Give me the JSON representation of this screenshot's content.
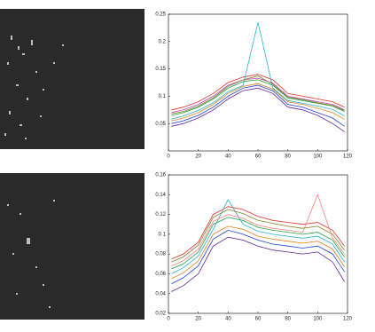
{
  "chart_data": [
    {
      "type": "line",
      "x": [
        2,
        10,
        20,
        30,
        40,
        50,
        60,
        70,
        80,
        90,
        100,
        110,
        118
      ],
      "xlim": [
        0,
        120
      ],
      "xticks": [
        0,
        20,
        40,
        60,
        80,
        100,
        120
      ],
      "ylim": [
        0,
        0.25
      ],
      "yticks": [
        0.05,
        0.1,
        0.15,
        0.2,
        0.25
      ],
      "series": [
        {
          "color": "#e03030",
          "values": [
            0.075,
            0.08,
            0.09,
            0.105,
            0.125,
            0.135,
            0.14,
            0.13,
            0.105,
            0.1,
            0.095,
            0.09,
            0.08
          ]
        },
        {
          "color": "#2040d0",
          "values": [
            0.05,
            0.055,
            0.065,
            0.08,
            0.1,
            0.115,
            0.12,
            0.11,
            0.085,
            0.08,
            0.07,
            0.06,
            0.045
          ]
        },
        {
          "color": "#20a040",
          "values": [
            0.065,
            0.07,
            0.08,
            0.095,
            0.115,
            0.127,
            0.13,
            0.12,
            0.097,
            0.092,
            0.087,
            0.082,
            0.072
          ]
        },
        {
          "color": "#20b0d0",
          "values": [
            0.058,
            0.064,
            0.074,
            0.088,
            0.108,
            0.12,
            0.235,
            0.115,
            0.092,
            0.087,
            0.082,
            0.076,
            0.064
          ]
        },
        {
          "color": "#c040c0",
          "values": [
            0.07,
            0.075,
            0.085,
            0.1,
            0.12,
            0.13,
            0.133,
            0.124,
            0.1,
            0.095,
            0.09,
            0.085,
            0.075
          ]
        },
        {
          "color": "#e08020",
          "values": [
            0.055,
            0.06,
            0.07,
            0.085,
            0.105,
            0.118,
            0.123,
            0.113,
            0.09,
            0.085,
            0.078,
            0.07,
            0.058
          ]
        },
        {
          "color": "#808020",
          "values": [
            0.068,
            0.072,
            0.082,
            0.097,
            0.118,
            0.13,
            0.137,
            0.122,
            0.098,
            0.094,
            0.088,
            0.083,
            0.074
          ]
        },
        {
          "color": "#6020a0",
          "values": [
            0.045,
            0.05,
            0.06,
            0.075,
            0.095,
            0.11,
            0.115,
            0.105,
            0.08,
            0.075,
            0.065,
            0.05,
            0.035
          ]
        }
      ]
    },
    {
      "type": "line",
      "x": [
        2,
        10,
        20,
        30,
        40,
        50,
        60,
        70,
        80,
        90,
        100,
        110,
        118
      ],
      "xlim": [
        0,
        120
      ],
      "xticks": [
        0,
        20,
        40,
        60,
        80,
        100,
        120
      ],
      "ylim": [
        0.02,
        0.16
      ],
      "yticks": [
        0.02,
        0.04,
        0.06,
        0.08,
        0.1,
        0.12,
        0.14,
        0.16
      ],
      "series": [
        {
          "color": "#e03030",
          "values": [
            0.075,
            0.08,
            0.092,
            0.12,
            0.128,
            0.125,
            0.118,
            0.114,
            0.112,
            0.11,
            0.112,
            0.104,
            0.088
          ]
        },
        {
          "color": "#2040d0",
          "values": [
            0.05,
            0.056,
            0.068,
            0.095,
            0.104,
            0.1,
            0.094,
            0.09,
            0.088,
            0.086,
            0.088,
            0.08,
            0.062
          ]
        },
        {
          "color": "#20a040",
          "values": [
            0.065,
            0.07,
            0.082,
            0.11,
            0.117,
            0.114,
            0.107,
            0.104,
            0.102,
            0.1,
            0.102,
            0.094,
            0.077
          ]
        },
        {
          "color": "#20b0d0",
          "values": [
            0.06,
            0.066,
            0.078,
            0.105,
            0.135,
            0.11,
            0.103,
            0.1,
            0.098,
            0.096,
            0.098,
            0.09,
            0.072
          ]
        },
        {
          "color": "#ff8080",
          "values": [
            0.068,
            0.073,
            0.085,
            0.113,
            0.12,
            0.116,
            0.109,
            0.106,
            0.104,
            0.102,
            0.14,
            0.096,
            0.08
          ]
        },
        {
          "color": "#e08020",
          "values": [
            0.055,
            0.061,
            0.073,
            0.1,
            0.108,
            0.105,
            0.098,
            0.095,
            0.093,
            0.091,
            0.093,
            0.085,
            0.067
          ]
        },
        {
          "color": "#808020",
          "values": [
            0.072,
            0.077,
            0.089,
            0.117,
            0.125,
            0.121,
            0.114,
            0.111,
            0.108,
            0.106,
            0.108,
            0.1,
            0.084
          ]
        },
        {
          "color": "#6020a0",
          "values": [
            0.042,
            0.048,
            0.06,
            0.088,
            0.097,
            0.094,
            0.088,
            0.084,
            0.082,
            0.08,
            0.082,
            0.072,
            0.052
          ]
        }
      ]
    }
  ]
}
